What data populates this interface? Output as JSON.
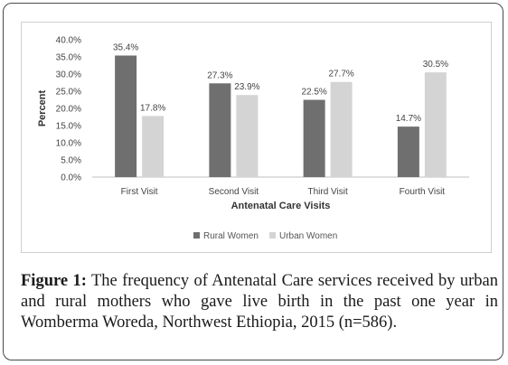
{
  "caption": {
    "label": "Figure 1:",
    "text": "The frequency of Antenatal Care services received by urban and rural mothers who gave live birth in the past one year in Womberma Woreda, Northwest Ethiopia, 2015 (n=586)."
  },
  "chart_data": {
    "type": "bar",
    "title": "",
    "xlabel": "Antenatal Care Visits",
    "ylabel": "Percent",
    "ylim": [
      0,
      40
    ],
    "yticks": [
      "0.0%",
      "5.0%",
      "10.0%",
      "15.0%",
      "20.0%",
      "25.0%",
      "30.0%",
      "35.0%",
      "40.0%"
    ],
    "categories": [
      "First Visit",
      "Second Visit",
      "Third Visit",
      "Fourth Visit"
    ],
    "series": [
      {
        "name": "Rural Women",
        "values": [
          35.4,
          27.3,
          22.5,
          14.7
        ],
        "labels": [
          "35.4%",
          "27.3%",
          "22.5%",
          "14.7%"
        ],
        "color": "#6f6f6f"
      },
      {
        "name": "Urban Women",
        "values": [
          17.8,
          23.9,
          27.7,
          30.5
        ],
        "labels": [
          "17.8%",
          "23.9%",
          "27.7%",
          "30.5%"
        ],
        "color": "#d4d4d4"
      }
    ],
    "grid": false,
    "legend_position": "bottom"
  }
}
